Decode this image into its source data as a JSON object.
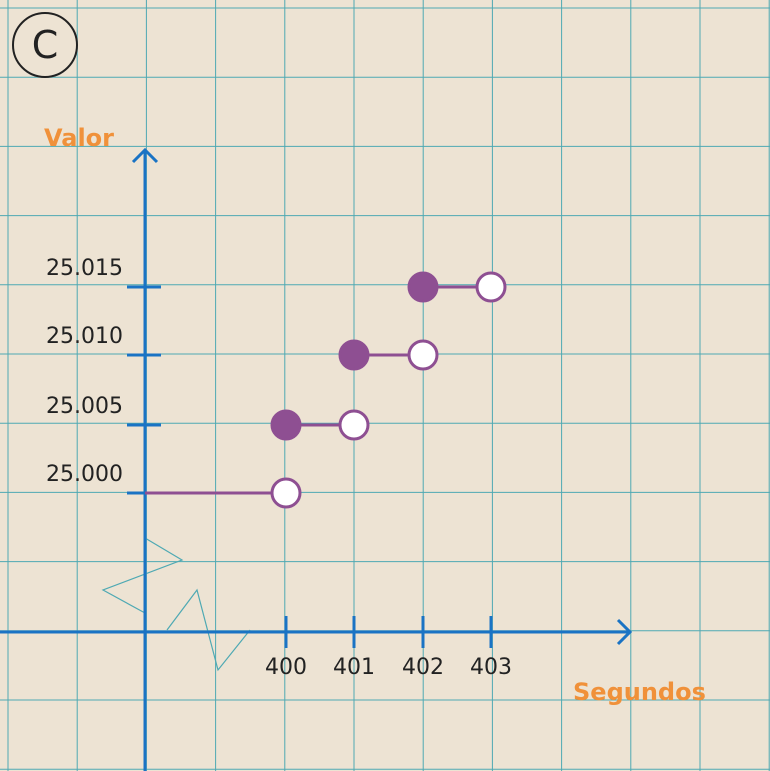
{
  "panel_label": "C",
  "chart_data": {
    "type": "line",
    "title": "",
    "xlabel": "Segundos",
    "ylabel": "Valor",
    "x_ticks": [
      400,
      401,
      402,
      403
    ],
    "x_tick_labels": [
      "400",
      "401",
      "402",
      "403"
    ],
    "y_ticks": [
      25.0,
      25.005,
      25.01,
      25.015
    ],
    "y_tick_labels": [
      "25.000",
      "25.005",
      "25.010",
      "25.015"
    ],
    "segments": [
      {
        "x_start": null,
        "x_end": 400,
        "y": 25.0,
        "start_closed": null,
        "end_closed": false
      },
      {
        "x_start": 400,
        "x_end": 401,
        "y": 25.005,
        "start_closed": true,
        "end_closed": false
      },
      {
        "x_start": 401,
        "x_end": 402,
        "y": 25.01,
        "start_closed": true,
        "end_closed": false
      },
      {
        "x_start": 402,
        "x_end": 403,
        "y": 25.015,
        "start_closed": true,
        "end_closed": false
      }
    ],
    "grid": true,
    "colors": {
      "background": "#ede3d3",
      "grid": "#4ea9b3",
      "axis": "#1a73c4",
      "series": "#8e4f92",
      "axis_label": "#f0913a"
    }
  }
}
